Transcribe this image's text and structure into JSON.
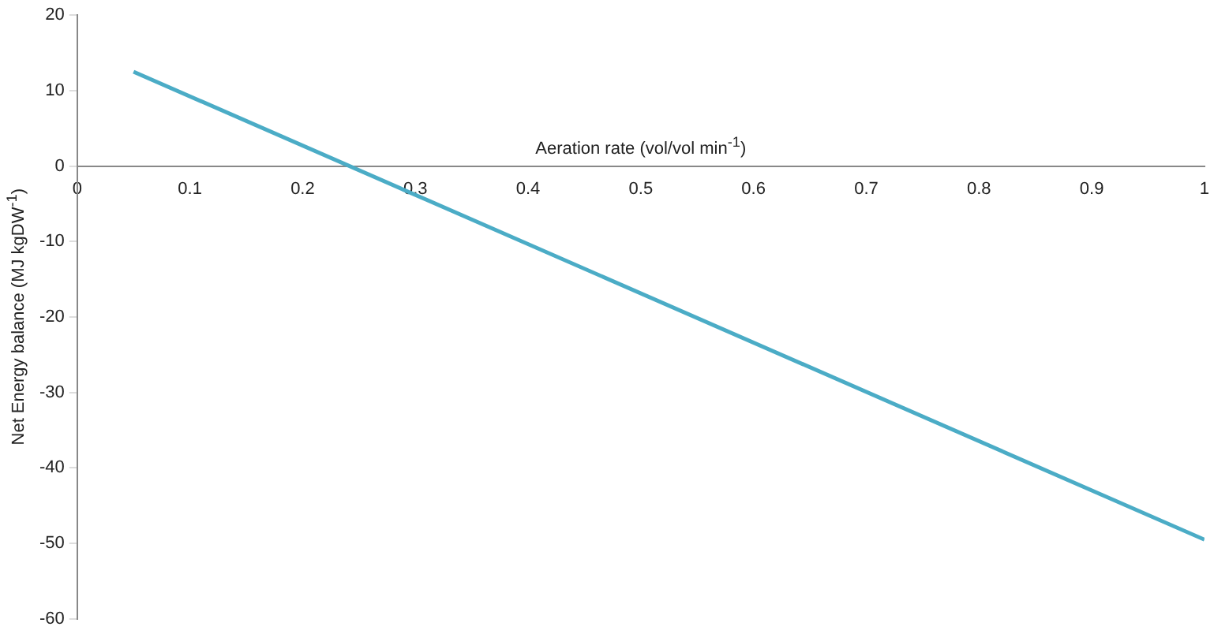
{
  "chart_data": {
    "type": "line",
    "xlabel": "Aeration rate (vol/vol min$^{-1}$)",
    "ylabel": "Net Energy balance (MJ kgDW$^{-1}$)",
    "x": [
      0.05,
      1
    ],
    "series": [
      {
        "color": "#4bacc6",
        "values": [
          12.5,
          -49.5
        ]
      }
    ],
    "xlim": [
      0,
      1
    ],
    "xticks": [
      0,
      0.1,
      0.2,
      0.3,
      0.4,
      0.5,
      0.6,
      0.7,
      0.8,
      0.9,
      1
    ],
    "ylim": [
      -60,
      20
    ],
    "yticks": [
      -60,
      -50,
      -40,
      -30,
      -20,
      -10,
      0,
      10,
      20
    ],
    "grid": false,
    "legend": false,
    "marker": "none",
    "line_style": "solid"
  }
}
